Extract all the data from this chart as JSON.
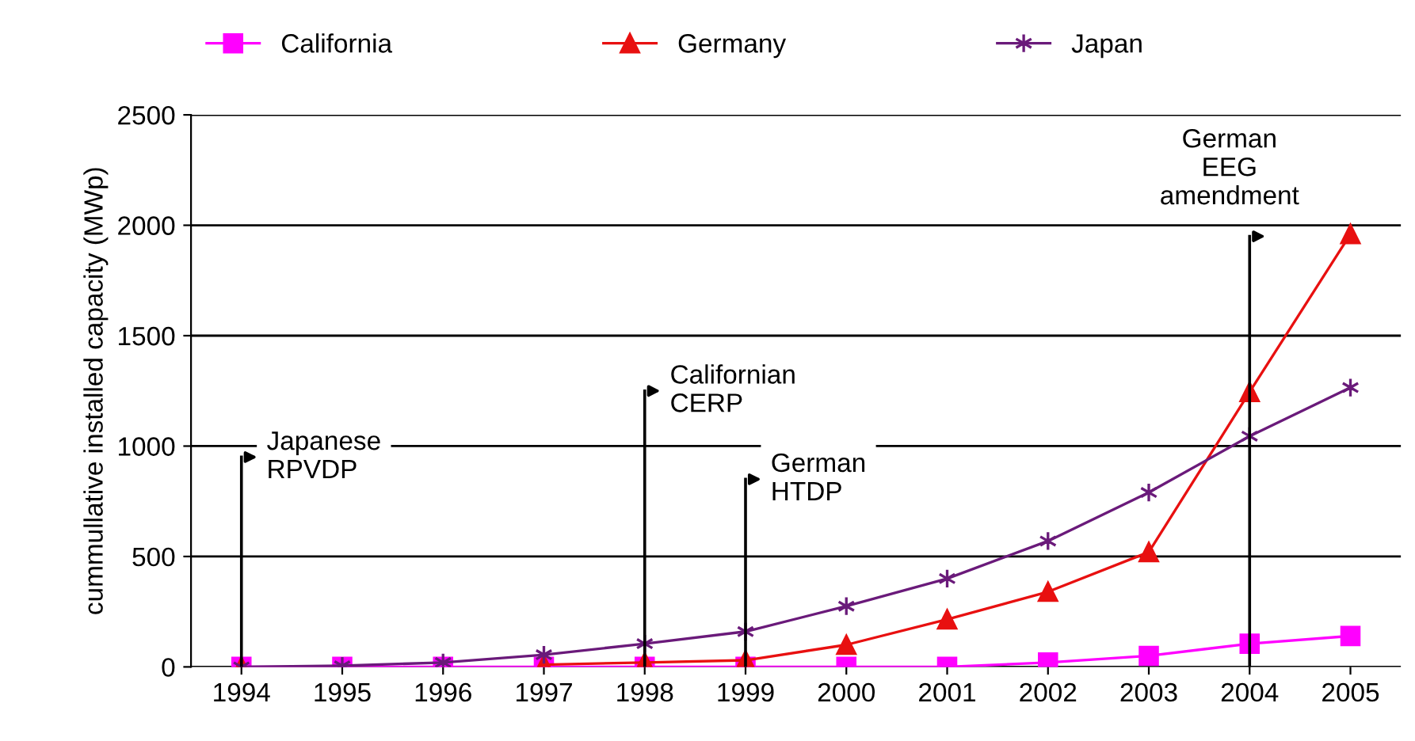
{
  "chart_data": {
    "type": "line",
    "ylabel": "cummullative installed capacity (MWp)",
    "categories": [
      "1994",
      "1995",
      "1996",
      "1997",
      "1998",
      "1999",
      "2000",
      "2001",
      "2002",
      "2003",
      "2004",
      "2005"
    ],
    "series": [
      {
        "name": "California",
        "color": "#ff00ff",
        "marker": "square",
        "values": [
          0,
          0,
          0,
          0,
          0,
          0,
          0,
          0,
          20,
          50,
          105,
          140
        ]
      },
      {
        "name": "Germany",
        "color": "#e81010",
        "marker": "triangle",
        "values": [
          0,
          null,
          null,
          10,
          20,
          30,
          100,
          215,
          340,
          520,
          1245,
          1960
        ]
      },
      {
        "name": "Japan",
        "color": "#6a1a7a",
        "marker": "cross",
        "values": [
          0,
          5,
          20,
          55,
          105,
          160,
          275,
          400,
          570,
          790,
          1045,
          1265
        ]
      }
    ],
    "ylim": [
      0,
      2500
    ],
    "yticks": [
      0,
      500,
      1000,
      1500,
      2000,
      2500
    ],
    "grid": "y",
    "legend": "top",
    "ref_lines": [
      {
        "axis": "x",
        "value": "1994",
        "label": "Japanese\nRPVDP"
      },
      {
        "axis": "x",
        "value": "1998",
        "label": "Californian\nCERP"
      },
      {
        "axis": "x",
        "value": "1999",
        "label": "German\nHTDP"
      },
      {
        "axis": "x",
        "value": "2004",
        "label": "German\nEEG\namendment"
      }
    ]
  }
}
